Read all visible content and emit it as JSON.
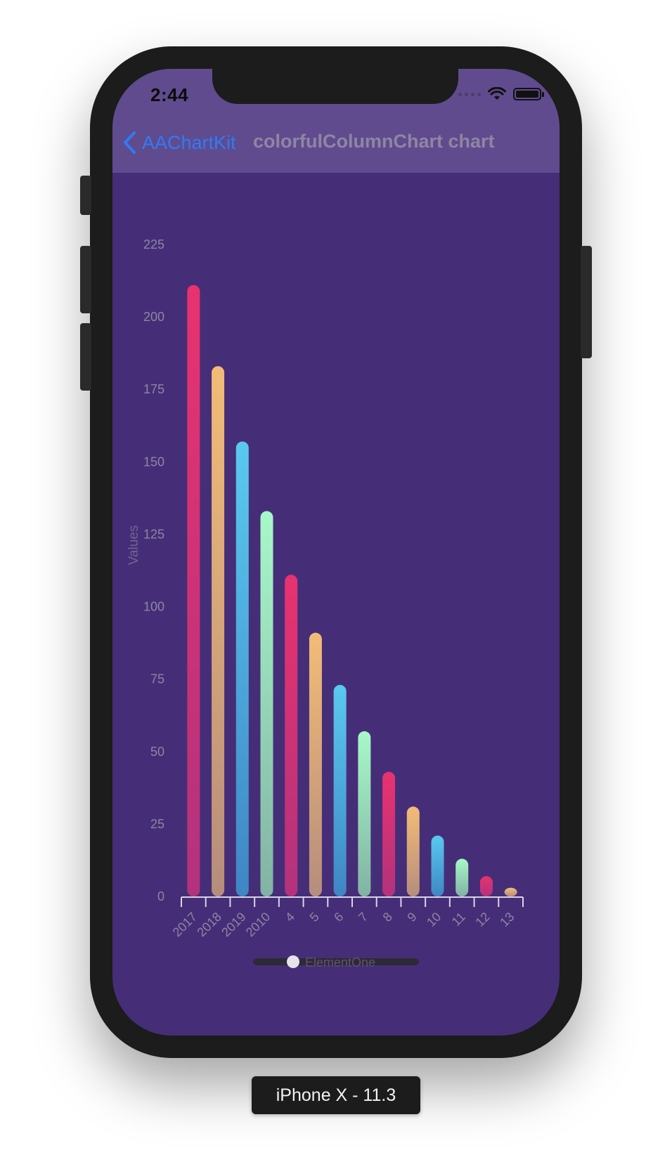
{
  "status_bar": {
    "time": "2:44"
  },
  "nav": {
    "back_label": "AAChartKit",
    "title": "colorfulColumnChart chart"
  },
  "device_label": "iPhone X - 11.3",
  "legend": {
    "label": "ElementOne"
  },
  "colors": {
    "background": "#452e77",
    "nav_background": "#604b8e",
    "back_link": "#2f7bf7",
    "axis_text": "#8e86a2",
    "gradient_pink": [
      "#e8326f",
      "#b3327d"
    ],
    "gradient_orange": [
      "#f2bc77",
      "#b68d7c"
    ],
    "gradient_blue": [
      "#5ac9ef",
      "#3f86c4"
    ],
    "gradient_green": [
      "#a7f8c8",
      "#82b3a4"
    ]
  },
  "chart_data": {
    "type": "bar",
    "title": "",
    "xlabel": "",
    "ylabel": "Values",
    "ylim": [
      0,
      225
    ],
    "yticks": [
      0,
      25,
      50,
      75,
      100,
      125,
      150,
      175,
      200,
      225
    ],
    "grid": false,
    "legend_position": "bottom",
    "categories": [
      "2017",
      "2018",
      "2019",
      "2010",
      "4",
      "5",
      "6",
      "7",
      "8",
      "9",
      "10",
      "11",
      "12",
      "13"
    ],
    "series": [
      {
        "name": "ElementOne",
        "values": [
          211,
          183,
          157,
          133,
          111,
          91,
          73,
          57,
          43,
          31,
          21,
          13,
          7,
          3
        ],
        "bar_colors": [
          "pink",
          "orange",
          "blue",
          "green",
          "pink",
          "orange",
          "blue",
          "green",
          "pink",
          "orange",
          "blue",
          "green",
          "pink",
          "orange"
        ]
      }
    ]
  }
}
